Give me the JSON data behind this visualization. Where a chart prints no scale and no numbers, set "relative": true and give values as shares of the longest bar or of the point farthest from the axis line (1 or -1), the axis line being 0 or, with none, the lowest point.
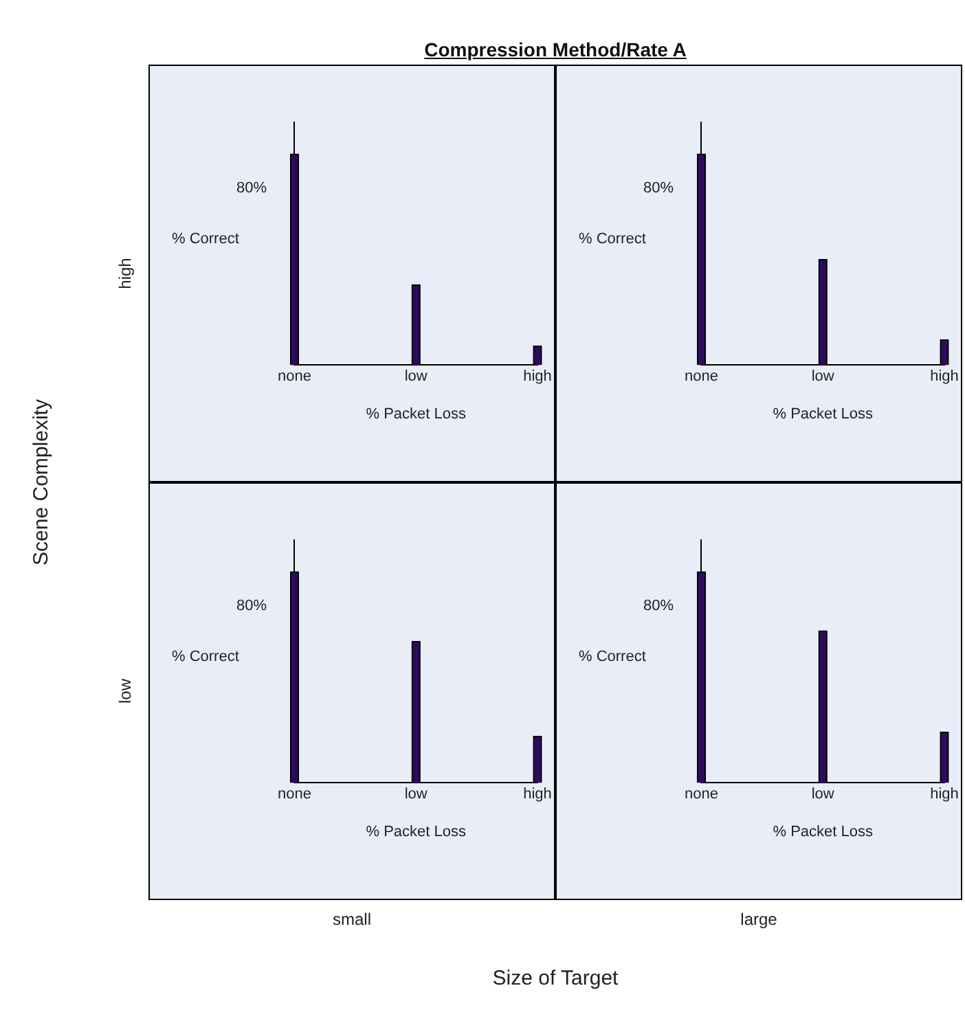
{
  "chart_data": [
    {
      "type": "other",
      "title": "Compression Method/Rate A",
      "xlabel": "Size of Target",
      "ylabel": "Scene Complexity",
      "categories": [
        "small",
        "large"
      ],
      "y_categories": [
        "high",
        "low"
      ]
    },
    {
      "type": "bar",
      "categories": [
        "none",
        "low",
        "high"
      ],
      "values": [
        1,
        0.38,
        0.09
      ],
      "color": "#2e0a5c",
      "relative": true,
      "xlabel": "% Packet Loss",
      "ylabel": "% Correct",
      "annotations": [
        "80%"
      ]
    },
    {
      "type": "bar",
      "categories": [
        "none",
        "low",
        "high"
      ],
      "values": [
        1,
        0.5,
        0.12
      ],
      "color": "#2e0a5c",
      "relative": true,
      "xlabel": "% Packet Loss",
      "ylabel": "% Correct",
      "annotations": [
        "80%"
      ]
    },
    {
      "type": "bar",
      "categories": [
        "none",
        "low",
        "high"
      ],
      "values": [
        1,
        0.67,
        0.22
      ],
      "color": "#2e0a5c",
      "relative": true,
      "xlabel": "% Packet Loss",
      "ylabel": "% Correct",
      "annotations": [
        "80%"
      ]
    },
    {
      "type": "bar",
      "categories": [
        "none",
        "low",
        "high"
      ],
      "values": [
        1,
        0.72,
        0.24
      ],
      "color": "#2e0a5c",
      "relative": true,
      "xlabel": "% Packet Loss",
      "ylabel": "% Correct",
      "annotations": [
        "80%"
      ]
    }
  ]
}
